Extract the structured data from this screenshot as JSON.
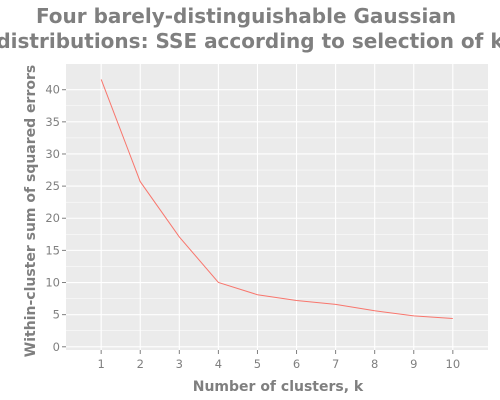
{
  "chart_data": {
    "type": "line",
    "title_lines": [
      "Four barely-distinguishable Gaussian",
      "distributions: SSE according to selection of k"
    ],
    "xlabel": "Number of clusters, k",
    "ylabel": "Within-cluster sum of squared errors",
    "x": [
      1,
      2,
      3,
      4,
      5,
      6,
      7,
      8,
      9,
      10
    ],
    "x_tick_labels": [
      "1",
      "2",
      "3",
      "4",
      "5",
      "6",
      "7",
      "8",
      "9",
      "10"
    ],
    "xlim": [
      0.1,
      10.9
    ],
    "y_ticks": [
      0,
      5,
      10,
      15,
      20,
      25,
      30,
      35,
      40
    ],
    "y_tick_labels": [
      "0",
      "5",
      "10",
      "15",
      "20",
      "25",
      "30",
      "35",
      "40"
    ],
    "ylim": [
      -0.5,
      44
    ],
    "series": [
      {
        "values": [
          41.6,
          25.7,
          17.1,
          10.0,
          8.1,
          7.2,
          6.6,
          5.6,
          4.8,
          4.4
        ],
        "color": "#f8766d"
      }
    ],
    "grid": true,
    "panel_color": "#ebebeb",
    "grid_color": "#ffffff",
    "text_color": "#7f7f7f"
  }
}
